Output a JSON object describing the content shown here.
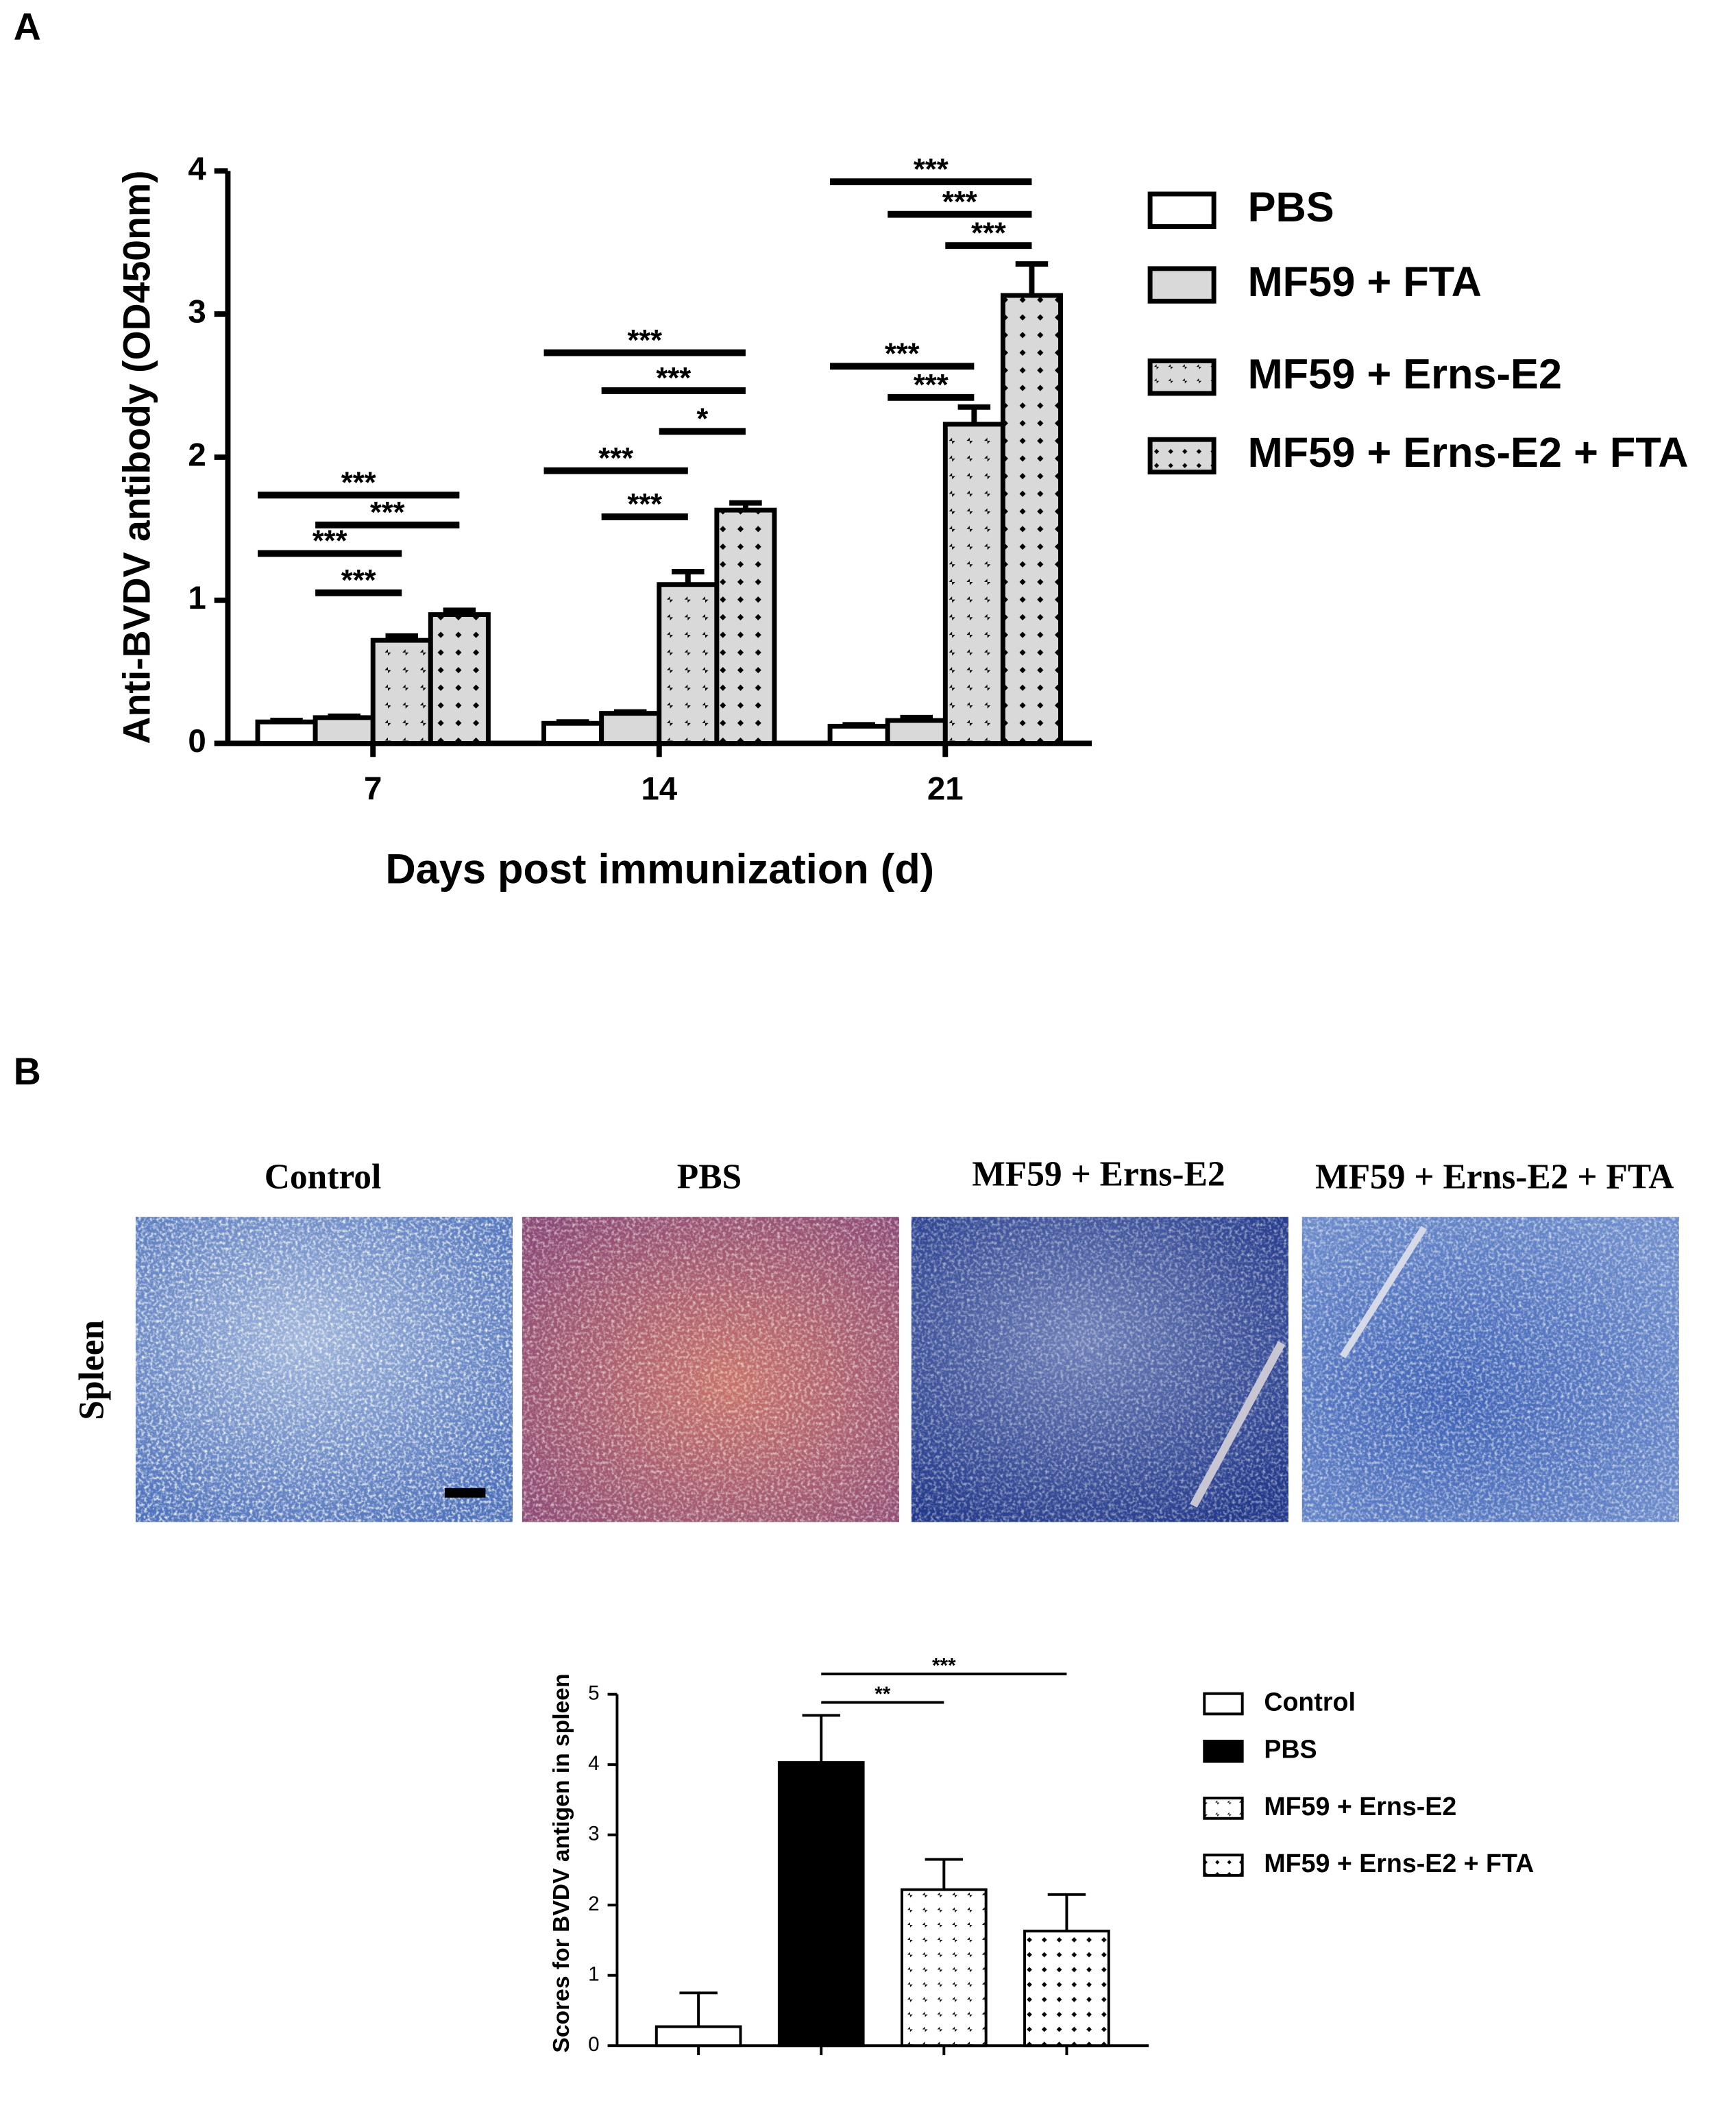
{
  "figure": {
    "panel_labels": [
      "A",
      "B"
    ],
    "micrographs": {
      "row_label": "Spleen",
      "titles": [
        "Control",
        "PBS",
        "MF59 + Erns-E2",
        "MF59 + Erns-E2 + FTA"
      ]
    }
  },
  "chart_data": [
    {
      "type": "bar",
      "y_label": "Anti-BVDV antibody (OD450nm)",
      "x_label": "Days post immunization (d)",
      "categories": [
        "7",
        "14",
        "21"
      ],
      "series": [
        {
          "name": "PBS",
          "color": "#ffffff",
          "pattern": "solid",
          "values": [
            0.15,
            0.14,
            0.12
          ],
          "errors": [
            0.01,
            0.01,
            0.01
          ]
        },
        {
          "name": "MF59 + FTA",
          "color": "#d9d9d9",
          "pattern": "solid",
          "values": [
            0.18,
            0.21,
            0.16
          ],
          "errors": [
            0.01,
            0.01,
            0.02
          ]
        },
        {
          "name": "MF59 + Erns-E2",
          "color": "#d9d9d9",
          "pattern": "diagonal",
          "values": [
            0.72,
            1.11,
            2.23
          ],
          "errors": [
            0.03,
            0.09,
            0.12
          ]
        },
        {
          "name": "MF59 + Erns-E2 + FTA",
          "color": "#d9d9d9",
          "pattern": "crosshatch",
          "values": [
            0.9,
            1.63,
            3.13
          ],
          "errors": [
            0.03,
            0.05,
            0.22
          ]
        }
      ],
      "ylim": [
        0,
        4
      ],
      "yticks": [
        0,
        1,
        2,
        3,
        4
      ],
      "grid": false,
      "legend": "right",
      "significance": [
        {
          "category": 0,
          "from": 0,
          "to": 3,
          "label": "***"
        },
        {
          "category": 0,
          "from": 1,
          "to": 3,
          "label": "***"
        },
        {
          "category": 0,
          "from": 0,
          "to": 2,
          "label": "***"
        },
        {
          "category": 0,
          "from": 1,
          "to": 2,
          "label": "***"
        },
        {
          "category": 1,
          "from": 0,
          "to": 3,
          "label": "***"
        },
        {
          "category": 1,
          "from": 1,
          "to": 3,
          "label": "***"
        },
        {
          "category": 1,
          "from": 2,
          "to": 3,
          "label": "*"
        },
        {
          "category": 1,
          "from": 0,
          "to": 2,
          "label": "***"
        },
        {
          "category": 1,
          "from": 1,
          "to": 2,
          "label": "***"
        },
        {
          "category": 2,
          "from": 0,
          "to": 3,
          "label": "***"
        },
        {
          "category": 2,
          "from": 1,
          "to": 3,
          "label": "***"
        },
        {
          "category": 2,
          "from": 2,
          "to": 3,
          "label": "***"
        },
        {
          "category": 2,
          "from": 0,
          "to": 2,
          "label": "***"
        },
        {
          "category": 2,
          "from": 1,
          "to": 2,
          "label": "***"
        }
      ]
    },
    {
      "type": "bar",
      "y_label": "Scores for BVDV antigen in spleen",
      "categories": [
        null,
        null,
        null,
        null
      ],
      "series": [
        {
          "name": "Control",
          "color": "#ffffff",
          "pattern": "solid",
          "values": [
            0.27,
            null,
            null,
            null
          ],
          "errors": [
            0.48,
            null,
            null,
            null
          ]
        },
        {
          "name": "PBS",
          "color": "#000000",
          "pattern": "solid",
          "values": [
            null,
            4.03,
            null,
            null
          ],
          "errors": [
            null,
            0.67,
            null,
            null
          ]
        },
        {
          "name": "MF59 + Erns-E2",
          "color": "#ffffff",
          "pattern": "diagonal",
          "values": [
            null,
            null,
            2.22,
            null
          ],
          "errors": [
            null,
            null,
            0.43,
            null
          ]
        },
        {
          "name": "MF59 + Erns-E2 + FTA",
          "color": "#ffffff",
          "pattern": "crosshatch",
          "values": [
            null,
            null,
            null,
            1.63
          ],
          "errors": [
            null,
            null,
            null,
            0.52
          ]
        }
      ],
      "ylim": [
        0,
        5
      ],
      "yticks": [
        0,
        1,
        2,
        3,
        4,
        5
      ],
      "grid": false,
      "legend": "right",
      "significance": [
        {
          "from": 1,
          "to": 2,
          "label": "**"
        },
        {
          "from": 1,
          "to": 3,
          "label": "***"
        }
      ]
    }
  ]
}
